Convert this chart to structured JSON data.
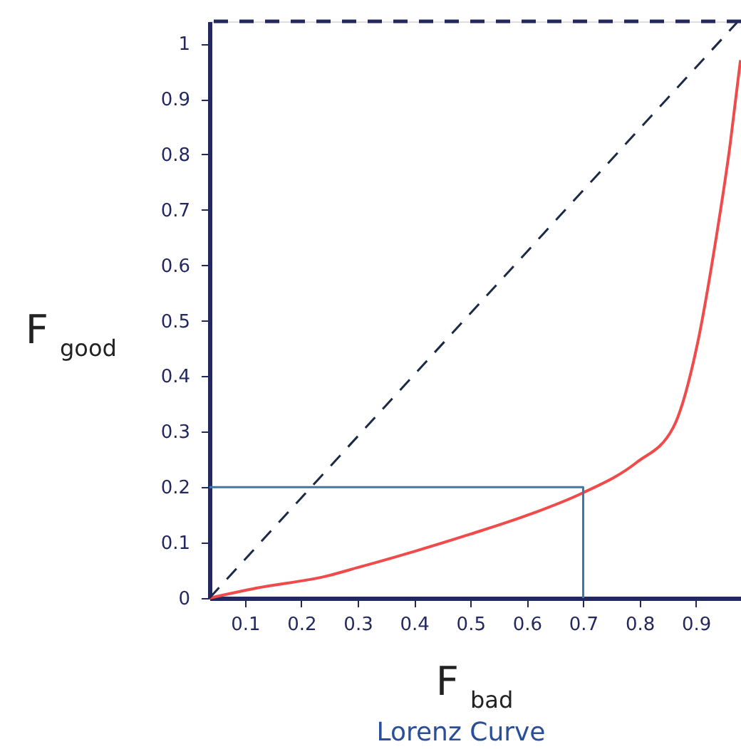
{
  "chart_data": {
    "type": "line",
    "title": "Lorenz Curve",
    "xlabel": "F$_{bad}$",
    "ylabel": "F$_{good}$",
    "xlim": [
      0.037,
      0.98
    ],
    "ylim": [
      0,
      1.04
    ],
    "xticks": [
      0.1,
      0.2,
      0.3,
      0.4,
      0.5,
      0.6,
      0.7,
      0.8,
      0.9
    ],
    "yticks": [
      0,
      0.1,
      0.2,
      0.3,
      0.4,
      0.5,
      0.6,
      0.7,
      0.8,
      0.9,
      1
    ],
    "grid": false,
    "marker": "none",
    "series": [
      {
        "color": "#ef4b4b",
        "line_style": "solid",
        "x": [
          0.037,
          0.12,
          0.246,
          0.3,
          0.403,
          0.499,
          0.6,
          0.7,
          0.794,
          0.86,
          0.903,
          0.936,
          0.961,
          0.979
        ],
        "values": [
          0,
          0.018,
          0.04,
          0.055,
          0.085,
          0.115,
          0.149,
          0.19,
          0.244,
          0.308,
          0.46,
          0.65,
          0.82,
          0.97
        ]
      },
      {
        "color": "#1c2a45",
        "line_style": "dashed",
        "x": [
          0.037,
          0.973
        ],
        "values": [
          0,
          1.038
        ]
      },
      {
        "color": "#3a78ad",
        "line_style": "solid",
        "x": [
          0.037,
          0.7,
          0.7
        ],
        "values": [
          0.2,
          0.2,
          0
        ]
      }
    ],
    "ref_lines": [
      {
        "axis": "y",
        "value": 1.04,
        "color": "#23295e",
        "line_style": "dashed"
      }
    ]
  }
}
